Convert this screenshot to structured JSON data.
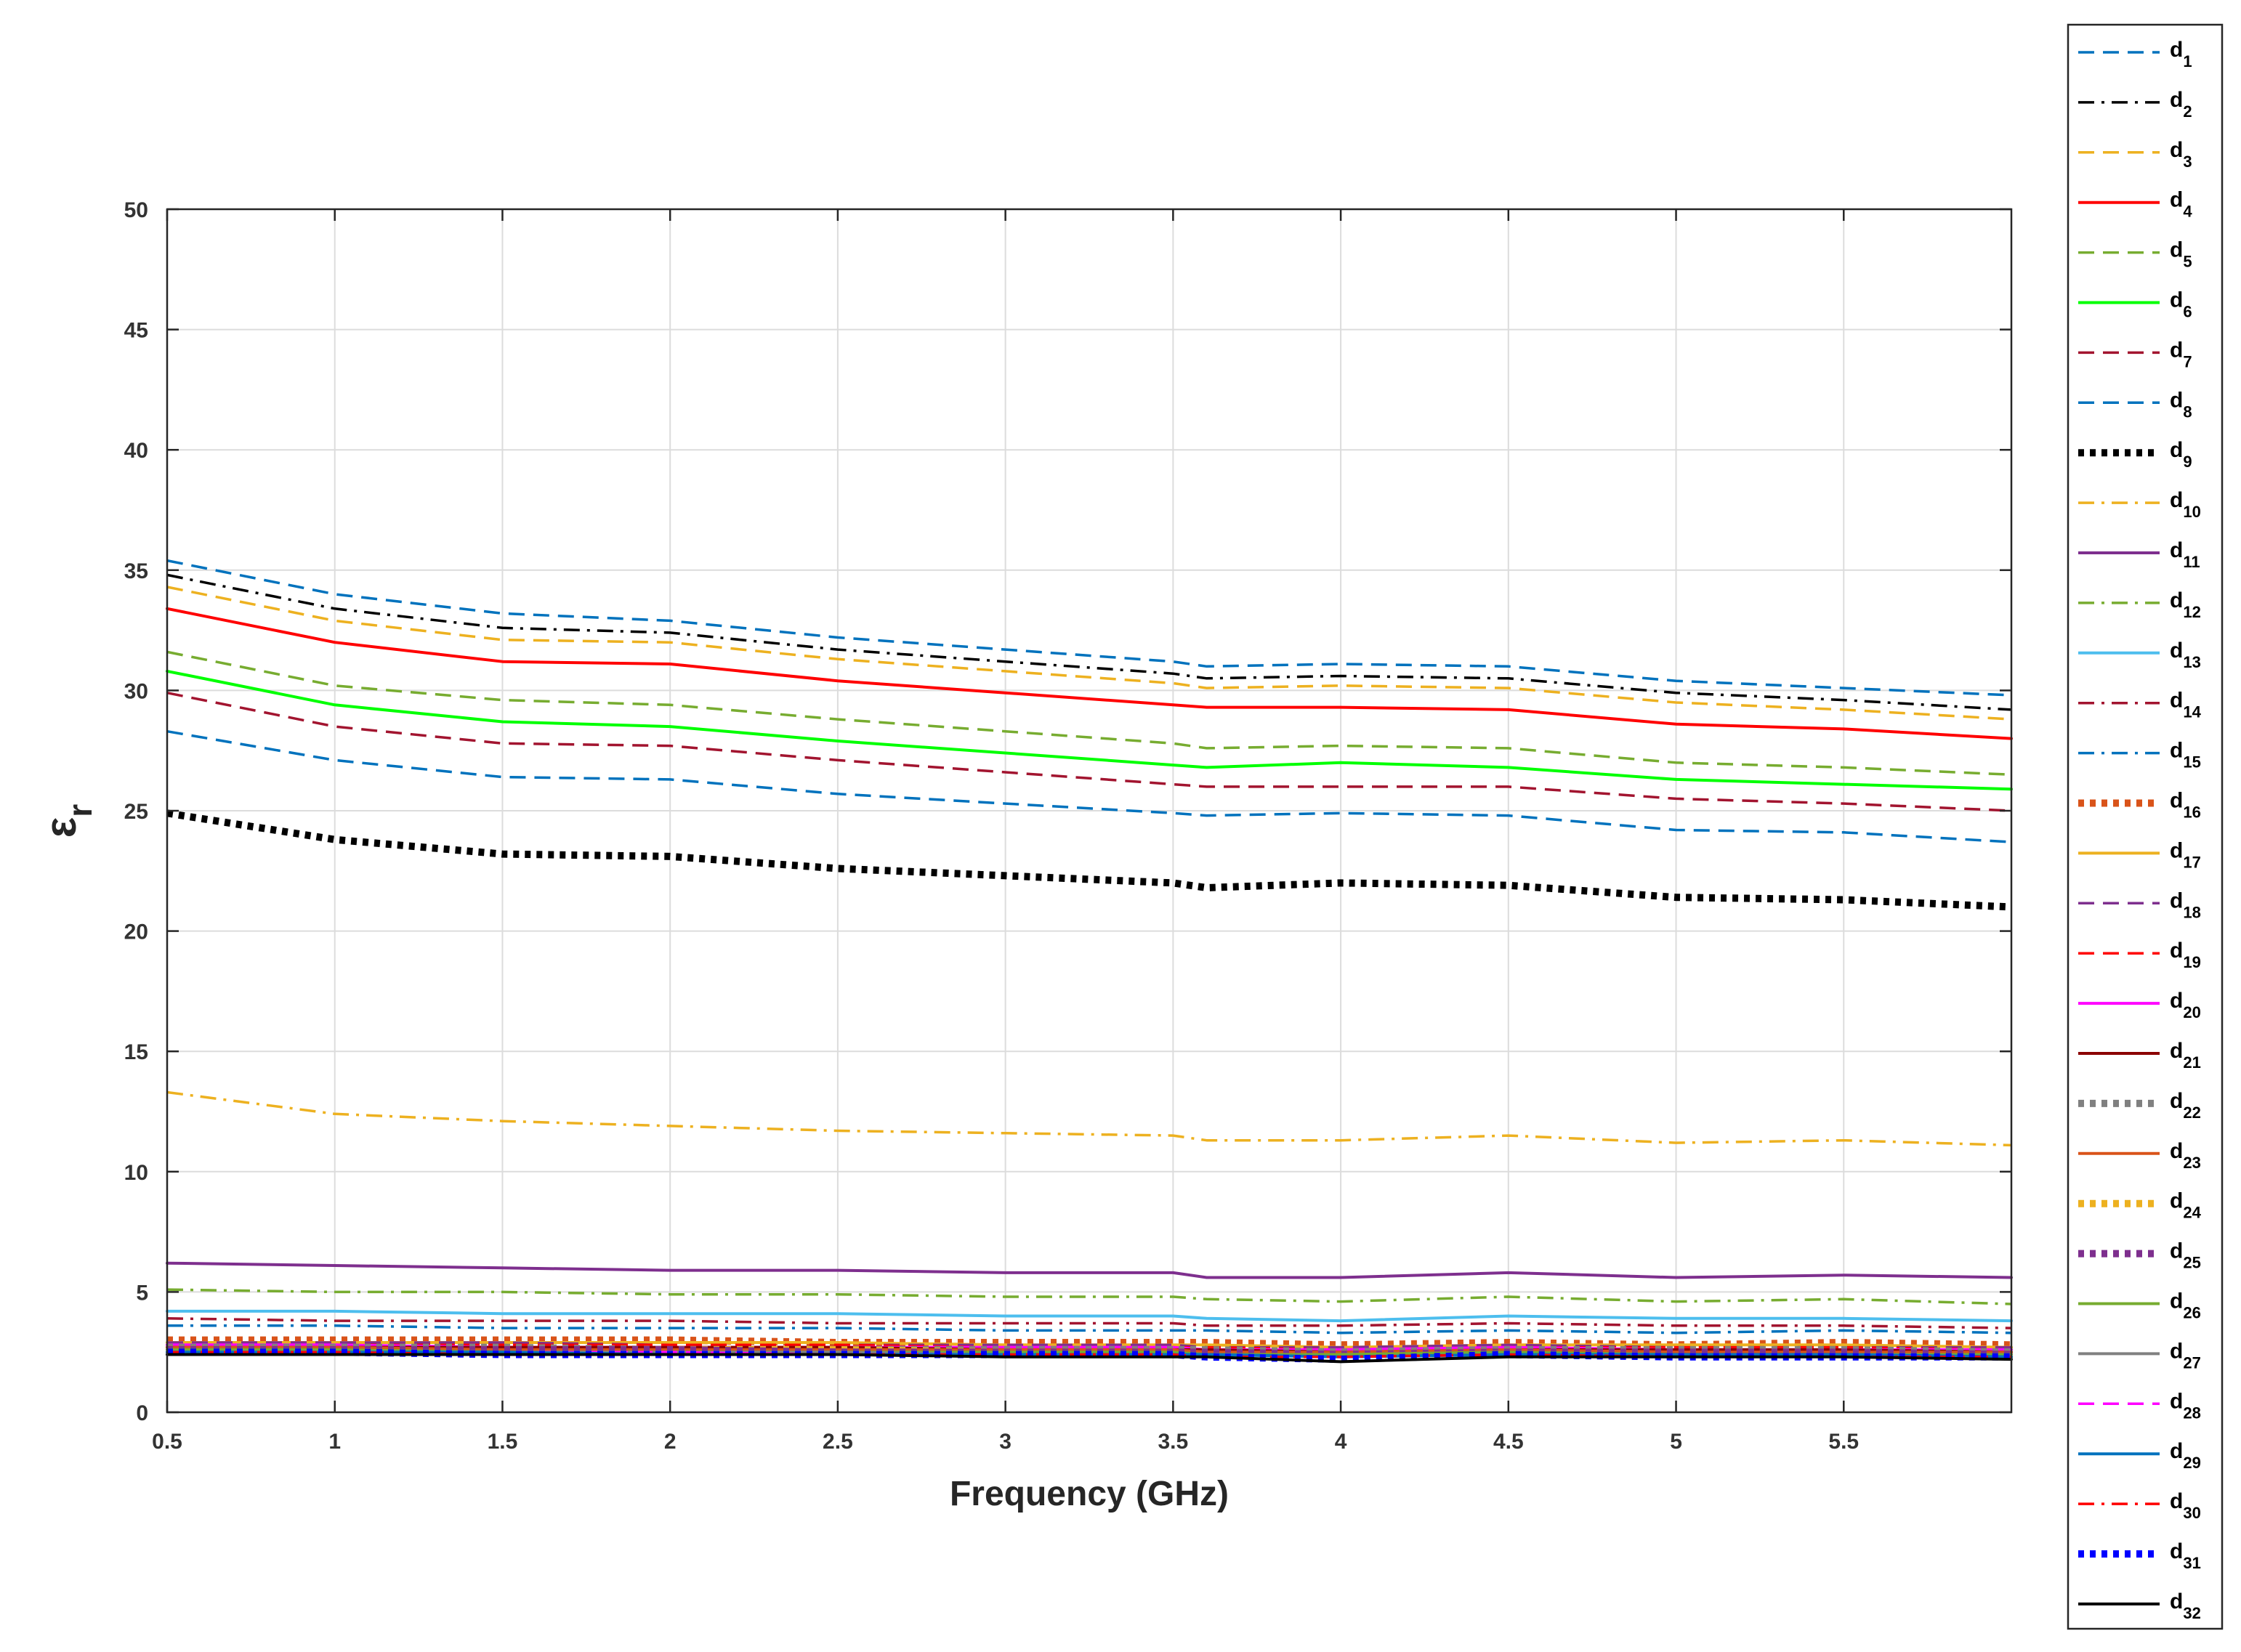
{
  "chart_data": {
    "type": "line",
    "title": "",
    "xlabel": "Frequency (GHz)",
    "ylabel_base": "ε",
    "ylabel_sub": "r",
    "xlim": [
      0.5,
      6.0
    ],
    "ylim": [
      0,
      50
    ],
    "xticks": [
      0.5,
      1,
      1.5,
      2,
      2.5,
      3,
      3.5,
      4,
      4.5,
      5,
      5.5
    ],
    "xtick_labels": [
      "0.5",
      "1",
      "1.5",
      "2",
      "2.5",
      "3",
      "3.5",
      "4",
      "4.5",
      "5",
      "5.5"
    ],
    "yticks": [
      0,
      5,
      10,
      15,
      20,
      25,
      30,
      35,
      40,
      45,
      50
    ],
    "ytick_labels": [
      "0",
      "5",
      "10",
      "15",
      "20",
      "25",
      "30",
      "35",
      "40",
      "45",
      "50"
    ],
    "grid": true,
    "legend_position": "outside-right",
    "x": [
      0.5,
      1.0,
      1.5,
      2.0,
      2.5,
      3.0,
      3.5,
      3.6,
      4.0,
      4.5,
      5.0,
      5.5,
      6.0
    ],
    "series": [
      {
        "name": "d",
        "sub": "1",
        "color": "#0072BD",
        "style": "dashed",
        "values": [
          35.4,
          34.0,
          33.2,
          32.9,
          32.2,
          31.7,
          31.2,
          31.0,
          31.1,
          31.0,
          30.4,
          30.1,
          29.8
        ]
      },
      {
        "name": "d",
        "sub": "2",
        "color": "#000000",
        "style": "dashdot",
        "values": [
          34.8,
          33.4,
          32.6,
          32.4,
          31.7,
          31.2,
          30.7,
          30.5,
          30.6,
          30.5,
          29.9,
          29.6,
          29.2
        ]
      },
      {
        "name": "d",
        "sub": "3",
        "color": "#EDB120",
        "style": "dashed",
        "values": [
          34.3,
          32.9,
          32.1,
          32.0,
          31.3,
          30.8,
          30.3,
          30.1,
          30.2,
          30.1,
          29.5,
          29.2,
          28.8
        ]
      },
      {
        "name": "d",
        "sub": "4",
        "color": "#FF0000",
        "style": "solid",
        "values": [
          33.4,
          32.0,
          31.2,
          31.1,
          30.4,
          29.9,
          29.4,
          29.3,
          29.3,
          29.2,
          28.6,
          28.4,
          28.0
        ]
      },
      {
        "name": "d",
        "sub": "5",
        "color": "#77AC30",
        "style": "dashed",
        "values": [
          31.6,
          30.2,
          29.6,
          29.4,
          28.8,
          28.3,
          27.8,
          27.6,
          27.7,
          27.6,
          27.0,
          26.8,
          26.5
        ]
      },
      {
        "name": "d",
        "sub": "6",
        "color": "#00FF00",
        "style": "solid",
        "values": [
          30.8,
          29.4,
          28.7,
          28.5,
          27.9,
          27.4,
          26.9,
          26.8,
          27.0,
          26.8,
          26.3,
          26.1,
          25.9
        ]
      },
      {
        "name": "d",
        "sub": "7",
        "color": "#A2142F",
        "style": "dashed",
        "values": [
          29.9,
          28.5,
          27.8,
          27.7,
          27.1,
          26.6,
          26.1,
          26.0,
          26.0,
          26.0,
          25.5,
          25.3,
          25.0
        ]
      },
      {
        "name": "d",
        "sub": "8",
        "color": "#0072BD",
        "style": "dashed",
        "values": [
          28.3,
          27.1,
          26.4,
          26.3,
          25.7,
          25.3,
          24.9,
          24.8,
          24.9,
          24.8,
          24.2,
          24.1,
          23.7
        ]
      },
      {
        "name": "d",
        "sub": "9",
        "color": "#000000",
        "style": "thickdot",
        "values": [
          24.9,
          23.8,
          23.2,
          23.1,
          22.6,
          22.3,
          22.0,
          21.8,
          22.0,
          21.9,
          21.4,
          21.3,
          21.0
        ]
      },
      {
        "name": "d",
        "sub": "10",
        "color": "#EDB120",
        "style": "dashdot",
        "values": [
          13.3,
          12.4,
          12.1,
          11.9,
          11.7,
          11.6,
          11.5,
          11.3,
          11.3,
          11.5,
          11.2,
          11.3,
          11.1
        ]
      },
      {
        "name": "d",
        "sub": "11",
        "color": "#7E2F8E",
        "style": "solid",
        "values": [
          6.2,
          6.1,
          6.0,
          5.9,
          5.9,
          5.8,
          5.8,
          5.6,
          5.6,
          5.8,
          5.6,
          5.7,
          5.6
        ]
      },
      {
        "name": "d",
        "sub": "12",
        "color": "#77AC30",
        "style": "dashdot",
        "values": [
          5.1,
          5.0,
          5.0,
          4.9,
          4.9,
          4.8,
          4.8,
          4.7,
          4.6,
          4.8,
          4.6,
          4.7,
          4.5
        ]
      },
      {
        "name": "d",
        "sub": "13",
        "color": "#4DBEEE",
        "style": "solid",
        "values": [
          4.2,
          4.2,
          4.1,
          4.1,
          4.1,
          4.0,
          4.0,
          3.9,
          3.8,
          4.0,
          3.9,
          3.9,
          3.8
        ]
      },
      {
        "name": "d",
        "sub": "14",
        "color": "#A2142F",
        "style": "dashdot",
        "values": [
          3.9,
          3.8,
          3.8,
          3.8,
          3.7,
          3.7,
          3.7,
          3.6,
          3.6,
          3.7,
          3.6,
          3.6,
          3.5
        ]
      },
      {
        "name": "d",
        "sub": "15",
        "color": "#0072BD",
        "style": "dashdot",
        "values": [
          3.6,
          3.6,
          3.5,
          3.5,
          3.5,
          3.4,
          3.4,
          3.4,
          3.3,
          3.4,
          3.3,
          3.4,
          3.3
        ]
      },
      {
        "name": "d",
        "sub": "16",
        "color": "#D95319",
        "style": "thickdot",
        "values": [
          3.0,
          3.0,
          3.0,
          3.0,
          2.9,
          2.9,
          2.9,
          2.9,
          2.8,
          2.9,
          2.8,
          2.9,
          2.8
        ]
      },
      {
        "name": "d",
        "sub": "17",
        "color": "#EDB120",
        "style": "solid",
        "values": [
          2.9,
          2.9,
          2.9,
          2.9,
          2.9,
          2.8,
          2.8,
          2.8,
          2.7,
          2.8,
          2.8,
          2.8,
          2.7
        ]
      },
      {
        "name": "d",
        "sub": "18",
        "color": "#7E2F8E",
        "style": "dashed",
        "values": [
          2.9,
          2.9,
          2.9,
          2.8,
          2.8,
          2.8,
          2.8,
          2.7,
          2.7,
          2.8,
          2.7,
          2.7,
          2.7
        ]
      },
      {
        "name": "d",
        "sub": "19",
        "color": "#FF0000",
        "style": "dashed",
        "values": [
          2.8,
          2.8,
          2.8,
          2.8,
          2.8,
          2.7,
          2.7,
          2.7,
          2.6,
          2.7,
          2.7,
          2.7,
          2.6
        ]
      },
      {
        "name": "d",
        "sub": "20",
        "color": "#FF00FF",
        "style": "solid",
        "values": [
          2.8,
          2.8,
          2.7,
          2.7,
          2.7,
          2.7,
          2.7,
          2.6,
          2.6,
          2.7,
          2.6,
          2.6,
          2.6
        ]
      },
      {
        "name": "d",
        "sub": "21",
        "color": "#8B0000",
        "style": "solid",
        "values": [
          2.7,
          2.7,
          2.7,
          2.7,
          2.7,
          2.6,
          2.6,
          2.6,
          2.5,
          2.6,
          2.6,
          2.6,
          2.5
        ]
      },
      {
        "name": "d",
        "sub": "22",
        "color": "#808080",
        "style": "thickdot",
        "values": [
          2.7,
          2.7,
          2.7,
          2.6,
          2.6,
          2.6,
          2.6,
          2.6,
          2.5,
          2.6,
          2.6,
          2.6,
          2.5
        ]
      },
      {
        "name": "d",
        "sub": "23",
        "color": "#D95319",
        "style": "solid",
        "values": [
          2.7,
          2.7,
          2.6,
          2.6,
          2.6,
          2.6,
          2.6,
          2.5,
          2.5,
          2.6,
          2.5,
          2.5,
          2.5
        ]
      },
      {
        "name": "d",
        "sub": "24",
        "color": "#EDB120",
        "style": "thickdot",
        "values": [
          2.6,
          2.6,
          2.6,
          2.6,
          2.6,
          2.5,
          2.5,
          2.5,
          2.4,
          2.5,
          2.5,
          2.5,
          2.4
        ]
      },
      {
        "name": "d",
        "sub": "25",
        "color": "#7E2F8E",
        "style": "thickdot",
        "values": [
          2.6,
          2.6,
          2.6,
          2.6,
          2.5,
          2.5,
          2.5,
          2.5,
          2.4,
          2.5,
          2.5,
          2.5,
          2.4
        ]
      },
      {
        "name": "d",
        "sub": "26",
        "color": "#77AC30",
        "style": "solid",
        "values": [
          2.6,
          2.6,
          2.5,
          2.5,
          2.5,
          2.5,
          2.5,
          2.4,
          2.4,
          2.5,
          2.4,
          2.4,
          2.4
        ]
      },
      {
        "name": "d",
        "sub": "27",
        "color": "#808080",
        "style": "solid",
        "values": [
          2.5,
          2.5,
          2.5,
          2.5,
          2.5,
          2.4,
          2.4,
          2.4,
          2.3,
          2.4,
          2.4,
          2.4,
          2.3
        ]
      },
      {
        "name": "d",
        "sub": "28",
        "color": "#FF00FF",
        "style": "dashed",
        "values": [
          2.5,
          2.5,
          2.5,
          2.5,
          2.4,
          2.4,
          2.4,
          2.4,
          2.3,
          2.4,
          2.4,
          2.4,
          2.3
        ]
      },
      {
        "name": "d",
        "sub": "29",
        "color": "#0072BD",
        "style": "solid",
        "values": [
          2.5,
          2.5,
          2.5,
          2.4,
          2.4,
          2.4,
          2.4,
          2.4,
          2.3,
          2.4,
          2.4,
          2.4,
          2.3
        ]
      },
      {
        "name": "d",
        "sub": "30",
        "color": "#FF0000",
        "style": "dashdot",
        "values": [
          2.5,
          2.5,
          2.4,
          2.4,
          2.4,
          2.4,
          2.4,
          2.3,
          2.3,
          2.4,
          2.3,
          2.3,
          2.3
        ]
      },
      {
        "name": "d",
        "sub": "31",
        "color": "#0000FF",
        "style": "thickdot",
        "values": [
          2.5,
          2.5,
          2.4,
          2.4,
          2.4,
          2.4,
          2.4,
          2.3,
          2.2,
          2.4,
          2.3,
          2.3,
          2.3
        ]
      },
      {
        "name": "d",
        "sub": "32",
        "color": "#000000",
        "style": "solid",
        "values": [
          2.4,
          2.4,
          2.4,
          2.4,
          2.4,
          2.3,
          2.3,
          2.3,
          2.1,
          2.3,
          2.3,
          2.3,
          2.2
        ]
      }
    ]
  }
}
